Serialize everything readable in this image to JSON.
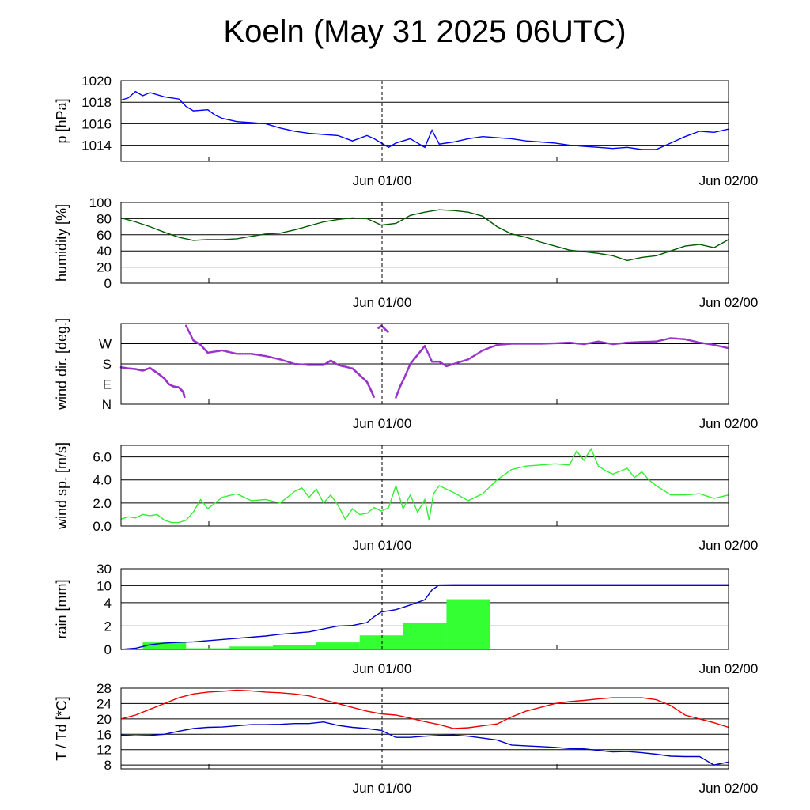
{
  "title": "Koeln (May 31 2025 06UTC)",
  "chart_data": [
    {
      "type": "line",
      "ylabel": "p [hPa]",
      "ylim": [
        1012.5,
        1020
      ],
      "yticks": [
        {
          "v": 1014,
          "label": "1014"
        },
        {
          "v": 1016,
          "label": "1016"
        },
        {
          "v": 1018,
          "label": "1018"
        },
        {
          "v": 1020,
          "label": "1020"
        }
      ],
      "xlim_hours": [
        0,
        42
      ],
      "xticks": [
        "Jun 01/00",
        "Jun 02/00"
      ],
      "grid": true,
      "series": [
        {
          "color": "#0000ff",
          "x": [
            0,
            0.5,
            1,
            1.5,
            2,
            3,
            4,
            4.5,
            5,
            6,
            6.5,
            7,
            8,
            9,
            10,
            11,
            12,
            13,
            14,
            15,
            16,
            17,
            17.5,
            18,
            18.5,
            19,
            20,
            21,
            21.5,
            22,
            23,
            24,
            25,
            26,
            27,
            28,
            29,
            30,
            31,
            32,
            33,
            34,
            35,
            36,
            37,
            38,
            39,
            40,
            41,
            42
          ],
          "y": [
            1018.2,
            1018.4,
            1019.0,
            1018.6,
            1018.9,
            1018.5,
            1018.3,
            1017.6,
            1017.2,
            1017.3,
            1016.8,
            1016.5,
            1016.2,
            1016.1,
            1016.0,
            1015.6,
            1015.3,
            1015.1,
            1015.0,
            1014.9,
            1014.4,
            1014.9,
            1014.6,
            1014.2,
            1013.8,
            1014.2,
            1014.6,
            1013.8,
            1015.4,
            1014.1,
            1014.3,
            1014.6,
            1014.8,
            1014.7,
            1014.6,
            1014.4,
            1014.3,
            1014.2,
            1014.0,
            1013.9,
            1013.8,
            1013.7,
            1013.8,
            1013.6,
            1013.6,
            1014.2,
            1014.8,
            1015.3,
            1015.2,
            1015.5
          ]
        }
      ]
    },
    {
      "type": "line",
      "ylabel": "humidity [%]",
      "ylim": [
        0,
        100
      ],
      "yticks": [
        {
          "v": 0,
          "label": "0"
        },
        {
          "v": 20,
          "label": "20"
        },
        {
          "v": 40,
          "label": "40"
        },
        {
          "v": 60,
          "label": "60"
        },
        {
          "v": 80,
          "label": "80"
        },
        {
          "v": 100,
          "label": "100"
        }
      ],
      "xlim_hours": [
        0,
        42
      ],
      "xticks": [
        "Jun 01/00",
        "Jun 02/00"
      ],
      "grid": true,
      "series": [
        {
          "color": "#005a00",
          "x": [
            0,
            1,
            2,
            3,
            4,
            5,
            6,
            7,
            8,
            9,
            10,
            11,
            12,
            13,
            14,
            15,
            16,
            17,
            18,
            19,
            20,
            21,
            22,
            23,
            24,
            25,
            26,
            27,
            28,
            29,
            30,
            31,
            32,
            33,
            34,
            35,
            36,
            37,
            38,
            39,
            40,
            41,
            42
          ],
          "y": [
            81,
            76,
            70,
            63,
            57,
            53,
            54,
            54,
            55,
            58,
            61,
            62,
            66,
            71,
            76,
            79,
            81,
            80,
            72,
            74,
            84,
            88,
            91,
            90,
            88,
            83,
            70,
            61,
            57,
            51,
            46,
            41,
            39,
            37,
            34,
            28,
            32,
            34,
            40,
            46,
            48,
            44,
            54
          ]
        }
      ]
    },
    {
      "type": "scatter",
      "ylabel": "wind dir. [deg.]",
      "ylim": [
        0,
        360
      ],
      "yticks": [
        {
          "v": 0,
          "label": "N"
        },
        {
          "v": 90,
          "label": "E"
        },
        {
          "v": 180,
          "label": "S"
        },
        {
          "v": 270,
          "label": "W"
        }
      ],
      "xlim_hours": [
        0,
        42
      ],
      "xticks": [
        "Jun 01/00",
        "Jun 02/00"
      ],
      "grid": true,
      "series": [
        {
          "color": "#9933cc",
          "x": [
            0,
            0.5,
            1,
            1.5,
            2,
            2.5,
            3,
            3.3,
            3.6,
            4,
            4.3,
            4.4,
            4.5,
            5,
            5.5,
            6,
            7,
            8,
            9,
            10,
            11,
            12,
            13,
            14,
            14.5,
            15,
            16,
            16.5,
            17,
            17.3,
            17.5,
            17.8,
            18,
            18.5,
            19,
            19.3,
            19.6,
            20,
            20.5,
            21,
            21.5,
            22,
            22.5,
            23,
            24,
            25,
            26,
            27,
            28,
            29,
            30,
            31,
            32,
            33,
            34,
            35,
            36,
            37,
            38,
            39,
            40,
            41,
            42
          ],
          "y": [
            165,
            160,
            157,
            150,
            162,
            140,
            115,
            90,
            80,
            75,
            55,
            30,
            350,
            285,
            265,
            230,
            240,
            225,
            225,
            215,
            200,
            180,
            175,
            175,
            195,
            175,
            160,
            130,
            100,
            60,
            30,
            340,
            350,
            320,
            30,
            80,
            120,
            180,
            220,
            260,
            190,
            190,
            170,
            180,
            200,
            240,
            265,
            270,
            270,
            270,
            272,
            275,
            268,
            280,
            268,
            275,
            278,
            280,
            295,
            290,
            275,
            265,
            250
          ]
        }
      ]
    },
    {
      "type": "line",
      "ylabel": "wind sp. [m/s]",
      "ylim": [
        0,
        7
      ],
      "yticks": [
        {
          "v": 0,
          "label": "0.0"
        },
        {
          "v": 2,
          "label": "2.0"
        },
        {
          "v": 4,
          "label": "4.0"
        },
        {
          "v": 6,
          "label": "6.0"
        }
      ],
      "xlim_hours": [
        0,
        42
      ],
      "xticks": [
        "Jun 01/00",
        "Jun 02/00"
      ],
      "grid": true,
      "series": [
        {
          "color": "#33ee33",
          "x": [
            0,
            0.5,
            1,
            1.5,
            2,
            2.5,
            3,
            3.5,
            4,
            4.5,
            5,
            5.5,
            6,
            6.5,
            7,
            8,
            9,
            10,
            11,
            12,
            12.5,
            13,
            13.5,
            14,
            14.5,
            15,
            15.5,
            16,
            16.5,
            17,
            17.5,
            18,
            18.5,
            19,
            19.5,
            20,
            20.5,
            21,
            21.3,
            21.6,
            22,
            22.5,
            23,
            24,
            25,
            26,
            27,
            28,
            29,
            30,
            31,
            31.5,
            32,
            32.5,
            33,
            33.5,
            34,
            35,
            35.5,
            36,
            36.5,
            37,
            38,
            39,
            40,
            41,
            42
          ],
          "y": [
            0.6,
            0.8,
            0.7,
            1.0,
            0.9,
            1.0,
            0.5,
            0.3,
            0.3,
            0.5,
            1.2,
            2.3,
            1.5,
            2.0,
            2.5,
            2.8,
            2.2,
            2.3,
            2.0,
            3.0,
            3.3,
            2.5,
            3.2,
            2.0,
            2.7,
            1.8,
            0.6,
            1.5,
            1.0,
            1.1,
            1.6,
            1.3,
            1.6,
            3.5,
            1.5,
            2.7,
            1.2,
            2.3,
            0.5,
            2.8,
            3.5,
            3.2,
            2.9,
            2.2,
            2.8,
            4.0,
            4.9,
            5.2,
            5.3,
            5.4,
            5.3,
            6.5,
            5.7,
            6.7,
            5.2,
            4.8,
            4.5,
            5.0,
            4.2,
            4.7,
            4.0,
            3.5,
            2.7,
            2.7,
            2.8,
            2.4,
            2.7
          ]
        }
      ]
    },
    {
      "type": "bar",
      "ylabel": "rain [mm]",
      "ylim": [
        0,
        30
      ],
      "yticks": [
        {
          "v": 0,
          "label": "0"
        },
        {
          "v": 2,
          "label": "2"
        },
        {
          "v": 4,
          "label": "4"
        },
        {
          "v": 10,
          "label": "10"
        },
        {
          "v": 30,
          "label": "30"
        }
      ],
      "xlim_hours": [
        0,
        42
      ],
      "xticks": [
        "Jun 01/00",
        "Jun 02/00"
      ],
      "grid": true,
      "bars": [
        {
          "x0": 1.5,
          "x1": 4.5,
          "v": 0.6
        },
        {
          "x0": 4.5,
          "x1": 7.5,
          "v": 0.1
        },
        {
          "x0": 7.5,
          "x1": 10.5,
          "v": 0.25
        },
        {
          "x0": 10.5,
          "x1": 13.5,
          "v": 0.4
        },
        {
          "x0": 13.5,
          "x1": 16.5,
          "v": 0.6
        },
        {
          "x0": 16.5,
          "x1": 19.5,
          "v": 1.2
        },
        {
          "x0": 19.5,
          "x1": 22.5,
          "v": 2.3
        },
        {
          "x0": 22.5,
          "x1": 25.5,
          "v": 5.2
        }
      ],
      "bar_color": "#33ff33",
      "series": [
        {
          "color": "#0000cc",
          "x": [
            0,
            1,
            2,
            3,
            4,
            5,
            6,
            7,
            8,
            9,
            10,
            11,
            12,
            13,
            14,
            15,
            16,
            17,
            17.5,
            18,
            19,
            20,
            21,
            21.5,
            22,
            23,
            24,
            25,
            26,
            30,
            34,
            38,
            42
          ],
          "y": [
            0,
            0.1,
            0.4,
            0.55,
            0.6,
            0.65,
            0.75,
            0.85,
            0.95,
            1.05,
            1.15,
            1.3,
            1.4,
            1.5,
            1.75,
            2.0,
            2.05,
            2.3,
            2.8,
            3.2,
            3.4,
            3.8,
            5.0,
            8.5,
            10.8,
            11.0,
            11.0,
            11.0,
            11.0,
            11.0,
            11.0,
            11.0,
            11.0
          ]
        }
      ]
    },
    {
      "type": "line",
      "ylabel": "T / Td [*C]",
      "ylim": [
        7,
        28
      ],
      "yticks": [
        {
          "v": 8,
          "label": "8"
        },
        {
          "v": 12,
          "label": "12"
        },
        {
          "v": 16,
          "label": "16"
        },
        {
          "v": 20,
          "label": "20"
        },
        {
          "v": 24,
          "label": "24"
        },
        {
          "v": 28,
          "label": "28"
        }
      ],
      "xlim_hours": [
        0,
        42
      ],
      "xticks": [
        "Jun 01/00",
        "Jun 02/00"
      ],
      "grid": true,
      "series": [
        {
          "color": "#ee0000",
          "x": [
            0,
            1,
            2,
            3,
            4,
            5,
            6,
            7,
            8,
            9,
            10,
            11,
            12,
            13,
            14,
            15,
            16,
            17,
            18,
            19,
            20,
            21,
            22,
            23,
            24,
            25,
            26,
            27,
            28,
            29,
            30,
            31,
            32,
            33,
            34,
            35,
            36,
            37,
            38,
            39,
            40,
            41,
            42
          ],
          "y": [
            20,
            21,
            22.5,
            24,
            25.5,
            26.5,
            27,
            27.2,
            27.5,
            27.3,
            27,
            26.8,
            26.5,
            26,
            25,
            24,
            23,
            22,
            21.3,
            21,
            20.2,
            19.3,
            18.5,
            17.5,
            17.7,
            18.2,
            18.7,
            20.5,
            22,
            23,
            24,
            24.5,
            24.8,
            25.2,
            25.5,
            25.5,
            25.5,
            25,
            23.5,
            21,
            20,
            19,
            17.8
          ]
        },
        {
          "color": "#0000cc",
          "x": [
            0,
            1,
            2,
            3,
            4,
            5,
            6,
            7,
            8,
            9,
            10,
            11,
            12,
            13,
            14,
            15,
            16,
            17,
            18,
            19,
            20,
            21,
            22,
            23,
            24,
            25,
            26,
            27,
            28,
            29,
            30,
            31,
            32,
            33,
            34,
            35,
            36,
            37,
            38,
            39,
            40,
            41,
            42
          ],
          "y": [
            15.8,
            15.6,
            15.7,
            16,
            16.8,
            17.5,
            17.8,
            17.9,
            18.2,
            18.5,
            18.5,
            18.6,
            18.8,
            18.8,
            19.2,
            18.3,
            17.8,
            17.5,
            17.0,
            15.2,
            15.2,
            15.5,
            15.7,
            15.8,
            15.5,
            15.0,
            14.5,
            13.2,
            13.0,
            12.8,
            12.6,
            12.3,
            12.2,
            11.8,
            11.4,
            11.5,
            11.2,
            10.8,
            10.3,
            10.2,
            10.2,
            8.0,
            8.8
          ]
        }
      ]
    }
  ]
}
